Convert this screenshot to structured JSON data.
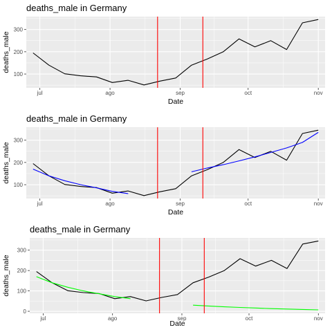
{
  "chart_data": [
    {
      "type": "line",
      "title": "deaths_male in Germany",
      "xlabel": "Date",
      "ylabel": "deaths_male",
      "x_tick_labels": [
        "jul",
        "ago",
        "sep",
        "oct",
        "nov"
      ],
      "x_tick_dates": [
        "2020-07-01",
        "2020-08-01",
        "2020-09-01",
        "2020-10-01",
        "2020-11-01"
      ],
      "y_ticks": [
        100,
        200,
        300
      ],
      "xlim": [
        "2020-06-25",
        "2020-11-04"
      ],
      "ylim": [
        38,
        358
      ],
      "grid": true,
      "vlines": [
        "2020-08-22",
        "2020-09-11"
      ],
      "colors": {
        "data": "#000000",
        "vline": "#ff0000",
        "panel": "#ebebeb",
        "grid": "#ffffff"
      },
      "series": [
        {
          "x": [
            "2020-06-28",
            "2020-07-05",
            "2020-07-12",
            "2020-07-19",
            "2020-07-26",
            "2020-08-02",
            "2020-08-09",
            "2020-08-16",
            "2020-08-23",
            "2020-08-30",
            "2020-09-06",
            "2020-09-13",
            "2020-09-20",
            "2020-09-27",
            "2020-10-04",
            "2020-10-11",
            "2020-10-18",
            "2020-10-25",
            "2020-11-01"
          ],
          "y": [
            195,
            140,
            101,
            92,
            87,
            62,
            72,
            51,
            68,
            82,
            140,
            168,
            200,
            258,
            222,
            250,
            210,
            330,
            345
          ]
        }
      ]
    },
    {
      "type": "line",
      "title": "deaths_male in Germany",
      "xlabel": "Date",
      "ylabel": "deaths_male",
      "x_tick_labels": [
        "jul",
        "ago",
        "sep",
        "oct",
        "nov"
      ],
      "x_tick_dates": [
        "2020-07-01",
        "2020-08-01",
        "2020-09-01",
        "2020-10-01",
        "2020-11-01"
      ],
      "y_ticks": [
        100,
        200,
        300
      ],
      "xlim": [
        "2020-06-25",
        "2020-11-04"
      ],
      "ylim": [
        38,
        358
      ],
      "grid": true,
      "vlines": [
        "2020-08-22",
        "2020-09-11"
      ],
      "colors": {
        "data": "#000000",
        "fit": "#0000ff",
        "vline": "#ff0000",
        "panel": "#ebebeb",
        "grid": "#ffffff"
      },
      "series": [
        {
          "x": [
            "2020-06-28",
            "2020-07-05",
            "2020-07-12",
            "2020-07-19",
            "2020-07-26",
            "2020-08-02",
            "2020-08-09",
            "2020-08-16",
            "2020-08-23",
            "2020-08-30",
            "2020-09-06",
            "2020-09-13",
            "2020-09-20",
            "2020-09-27",
            "2020-10-04",
            "2020-10-11",
            "2020-10-18",
            "2020-10-25",
            "2020-11-01"
          ],
          "y": [
            195,
            140,
            101,
            92,
            87,
            62,
            72,
            51,
            68,
            82,
            140,
            168,
            200,
            258,
            222,
            250,
            210,
            330,
            345
          ]
        },
        {
          "x": [
            "2020-06-28",
            "2020-07-05",
            "2020-07-12",
            "2020-07-19",
            "2020-07-26",
            "2020-08-02",
            "2020-08-09"
          ],
          "y": [
            170,
            140,
            118,
            100,
            86,
            70,
            60
          ],
          "color": "#0000ff"
        },
        {
          "x": [
            "2020-09-06",
            "2020-09-13",
            "2020-09-20",
            "2020-09-27",
            "2020-10-04",
            "2020-10-11",
            "2020-10-18",
            "2020-10-25",
            "2020-11-01"
          ],
          "y": [
            158,
            175,
            190,
            207,
            225,
            245,
            265,
            290,
            335
          ],
          "color": "#0000ff"
        }
      ]
    },
    {
      "type": "line",
      "title": "deaths_male in Germany",
      "xlabel": "Date",
      "ylabel": "deaths_male",
      "x_tick_labels": [
        "jul",
        "ago",
        "sep",
        "oct",
        "nov"
      ],
      "x_tick_dates": [
        "2020-07-01",
        "2020-08-01",
        "2020-09-01",
        "2020-10-01",
        "2020-11-01"
      ],
      "y_ticks": [
        0,
        100,
        200,
        300
      ],
      "xlim": [
        "2020-06-25",
        "2020-11-04"
      ],
      "ylim": [
        -10,
        360
      ],
      "grid": true,
      "vlines": [
        "2020-08-22",
        "2020-09-11"
      ],
      "colors": {
        "data": "#000000",
        "fit": "#00ff00",
        "vline": "#ff0000",
        "panel": "#ebebeb",
        "grid": "#ffffff"
      },
      "series": [
        {
          "x": [
            "2020-06-28",
            "2020-07-05",
            "2020-07-12",
            "2020-07-19",
            "2020-07-26",
            "2020-08-02",
            "2020-08-09",
            "2020-08-16",
            "2020-08-23",
            "2020-08-30",
            "2020-09-06",
            "2020-09-13",
            "2020-09-20",
            "2020-09-27",
            "2020-10-04",
            "2020-10-11",
            "2020-10-18",
            "2020-10-25",
            "2020-11-01"
          ],
          "y": [
            195,
            140,
            101,
            92,
            87,
            62,
            72,
            51,
            68,
            82,
            140,
            168,
            200,
            258,
            222,
            250,
            210,
            330,
            345
          ]
        },
        {
          "x": [
            "2020-06-28",
            "2020-07-05",
            "2020-07-12",
            "2020-07-19",
            "2020-07-26",
            "2020-08-02",
            "2020-08-09"
          ],
          "y": [
            170,
            140,
            118,
            100,
            86,
            72,
            62
          ],
          "color": "#00ff00"
        },
        {
          "x": [
            "2020-09-06",
            "2020-09-13",
            "2020-09-20",
            "2020-09-27",
            "2020-10-04",
            "2020-10-11",
            "2020-10-18",
            "2020-10-25",
            "2020-11-01"
          ],
          "y": [
            30,
            26,
            22,
            19,
            16,
            13,
            11,
            9,
            7
          ],
          "color": "#00ff00"
        }
      ]
    }
  ]
}
